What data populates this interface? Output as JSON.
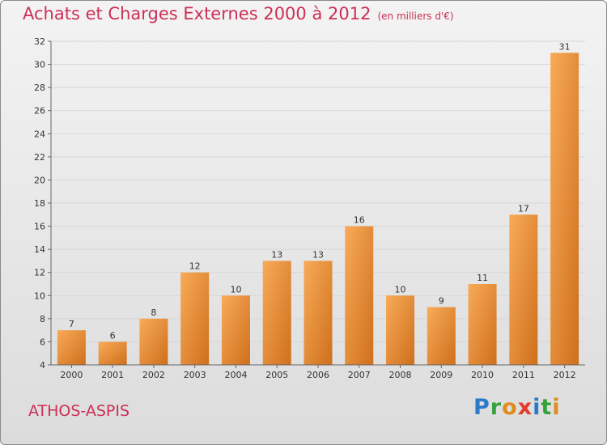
{
  "title": "Achats et Charges Externes 2000 à 2012",
  "subtitle": "(en milliers d'€)",
  "place": "ATHOS-ASPIS",
  "logo": [
    "P",
    "r",
    "o",
    "x",
    "i",
    "t",
    "i"
  ],
  "colors": {
    "title": "#cc2f55",
    "bar_light": "#f6a24c",
    "bar_dark": "#cf6f1c",
    "axis": "#666666",
    "grid": "#d7d7d7"
  },
  "chart_data": {
    "type": "bar",
    "categories": [
      "2000",
      "2001",
      "2002",
      "2003",
      "2004",
      "2005",
      "2006",
      "2007",
      "2008",
      "2009",
      "2010",
      "2011",
      "2012"
    ],
    "values": [
      7,
      6,
      8,
      12,
      10,
      13,
      13,
      16,
      10,
      9,
      11,
      17,
      31
    ],
    "title": "Achats et Charges Externes 2000 à 2012",
    "xlabel": "",
    "ylabel": "",
    "ylim": [
      4,
      32
    ],
    "yticks": [
      4,
      6,
      8,
      10,
      12,
      14,
      16,
      18,
      20,
      22,
      24,
      26,
      28,
      30,
      32
    ],
    "grid": true,
    "legend": "none"
  }
}
